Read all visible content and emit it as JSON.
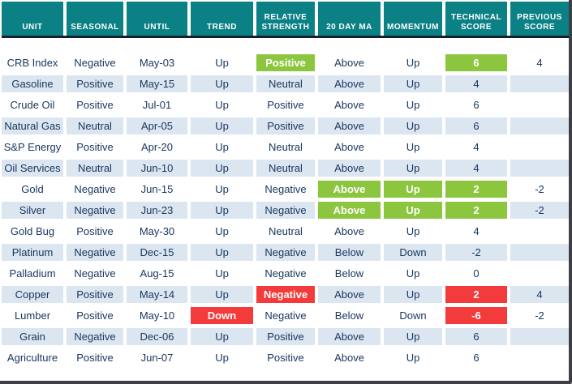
{
  "chart_data": {
    "type": "table",
    "title": "",
    "columns": [
      "UNIT",
      "SEASONAL",
      "UNTIL",
      "TREND",
      "RELATIVE STRENGTH",
      "20 DAY MA",
      "MOMENTUM",
      "TECHNICAL SCORE",
      "PREVIOUS SCORE"
    ],
    "rows": [
      {
        "cells": [
          "CRB Index",
          "Negative",
          "May-03",
          "Up",
          "Positive",
          "Above",
          "Up",
          "6",
          "4"
        ],
        "highlights": {
          "4": "green",
          "7": "green"
        }
      },
      {
        "cells": [
          "Gasoline",
          "Positive",
          "May-15",
          "Up",
          "Neutral",
          "Above",
          "Up",
          "4",
          ""
        ],
        "highlights": {}
      },
      {
        "cells": [
          "Crude Oil",
          "Positive",
          "Jul-01",
          "Up",
          "Positive",
          "Above",
          "Up",
          "6",
          ""
        ],
        "highlights": {}
      },
      {
        "cells": [
          "Natural Gas",
          "Neutral",
          "Apr-05",
          "Up",
          "Positive",
          "Above",
          "Up",
          "6",
          ""
        ],
        "highlights": {}
      },
      {
        "cells": [
          "S&P Energy",
          "Positive",
          "Apr-20",
          "Up",
          "Neutral",
          "Above",
          "Up",
          "4",
          ""
        ],
        "highlights": {}
      },
      {
        "cells": [
          "Oil Services",
          "Neutral",
          "Jun-10",
          "Up",
          "Neutral",
          "Above",
          "Up",
          "4",
          ""
        ],
        "highlights": {}
      },
      {
        "cells": [
          "Gold",
          "Negative",
          "Jun-15",
          "Up",
          "Negative",
          "Above",
          "Up",
          "2",
          "-2"
        ],
        "highlights": {
          "5": "green",
          "6": "green",
          "7": "green"
        }
      },
      {
        "cells": [
          "Silver",
          "Negative",
          "Jun-23",
          "Up",
          "Negative",
          "Above",
          "Up",
          "2",
          "-2"
        ],
        "highlights": {
          "5": "green",
          "6": "green",
          "7": "green"
        }
      },
      {
        "cells": [
          "Gold Bug",
          "Positive",
          "May-30",
          "Up",
          "Neutral",
          "Above",
          "Up",
          "4",
          ""
        ],
        "highlights": {}
      },
      {
        "cells": [
          "Platinum",
          "Negative",
          "Dec-15",
          "Up",
          "Negative",
          "Below",
          "Down",
          "-2",
          ""
        ],
        "highlights": {}
      },
      {
        "cells": [
          "Palladium",
          "Negative",
          "Aug-15",
          "Up",
          "Negative",
          "Below",
          "Up",
          "0",
          ""
        ],
        "highlights": {}
      },
      {
        "cells": [
          "Copper",
          "Positive",
          "May-14",
          "Up",
          "Negative",
          "Above",
          "Up",
          "2",
          "4"
        ],
        "highlights": {
          "4": "red",
          "7": "red"
        }
      },
      {
        "cells": [
          "Lumber",
          "Positive",
          "May-10",
          "Down",
          "Negative",
          "Below",
          "Down",
          "-6",
          "-2"
        ],
        "highlights": {
          "3": "red",
          "7": "red"
        }
      },
      {
        "cells": [
          "Grain",
          "Negative",
          "Dec-06",
          "Up",
          "Positive",
          "Above",
          "Up",
          "6",
          ""
        ],
        "highlights": {}
      },
      {
        "cells": [
          "Agriculture",
          "Positive",
          "Jun-07",
          "Up",
          "Positive",
          "Above",
          "Up",
          "6",
          ""
        ],
        "highlights": {}
      }
    ],
    "layout": {
      "row_striping": [
        "white",
        "light-blue"
      ],
      "legend": "none",
      "grid": "off"
    }
  },
  "colors": {
    "header_bg": "#0b8085",
    "row_alt": "#dce6f1",
    "text": "#17365d",
    "green": "#8cc63f",
    "red": "#f43b3c",
    "divider": "#16202f",
    "frame": "#3e3e46"
  }
}
